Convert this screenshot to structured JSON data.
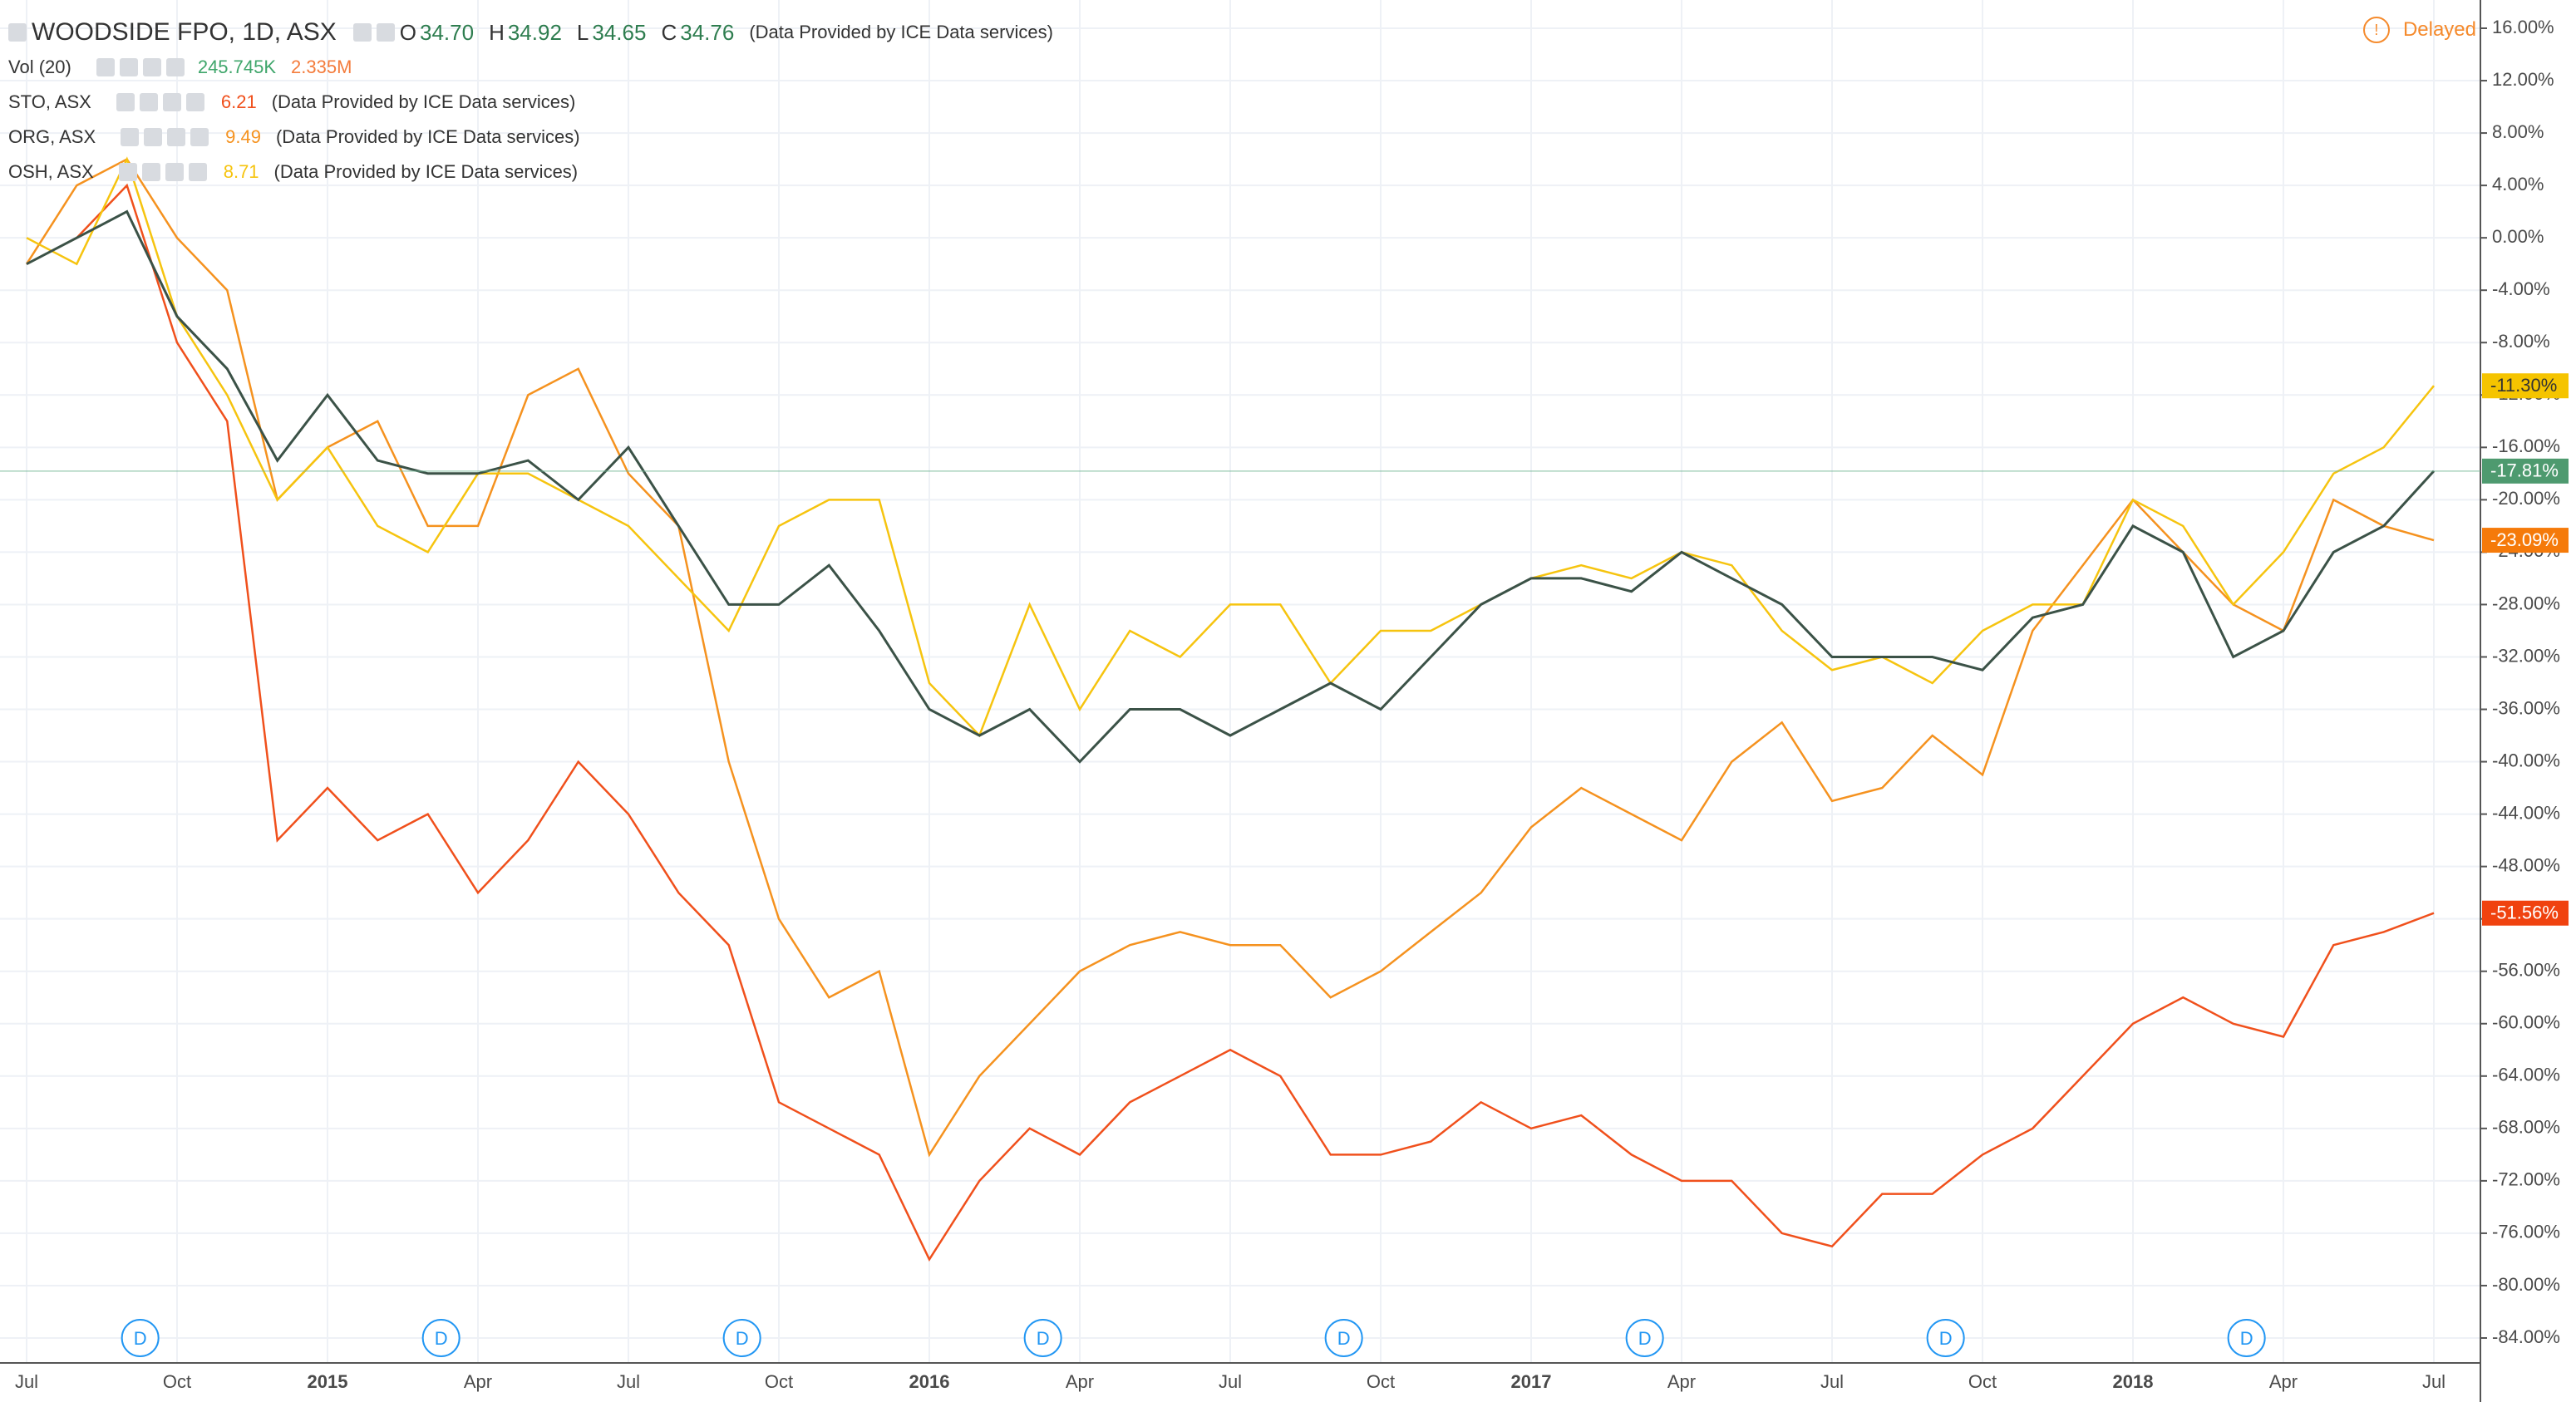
{
  "header": {
    "ohlc": [
      {
        "key": "O",
        "value": "34.70"
      },
      {
        "key": "H",
        "value": "34.92"
      },
      {
        "key": "L",
        "value": "34.65"
      },
      {
        "key": "C",
        "value": "34.76"
      }
    ],
    "source": "(Data Provided by ICE Data services)",
    "delayed": "Delayed",
    "volume": {
      "name": "Vol (20)",
      "values": [
        "245.745K",
        "2.335M"
      ]
    }
  },
  "chart_data": {
    "type": "line",
    "categories": [
      "Jul",
      null,
      null,
      "Oct",
      null,
      null,
      "2015",
      null,
      null,
      "Apr",
      null,
      null,
      "Jul",
      null,
      null,
      "Oct",
      null,
      null,
      "2016",
      null,
      null,
      "Apr",
      null,
      null,
      "Jul",
      null,
      null,
      "Oct",
      null,
      null,
      "2017",
      null,
      null,
      "Apr",
      null,
      null,
      "Jul",
      null,
      null,
      "Oct",
      null,
      null,
      "2018",
      null,
      null,
      "Apr",
      null,
      null,
      "Jul"
    ],
    "ylim": [
      -86,
      18
    ],
    "yticks": [
      {
        "value": 16,
        "label": "16.00%"
      },
      {
        "value": 12,
        "label": "12.00%"
      },
      {
        "value": 8,
        "label": "8.00%"
      },
      {
        "value": 4,
        "label": "4.00%"
      },
      {
        "value": 0,
        "label": "0.00%"
      },
      {
        "value": -4,
        "label": "-4.00%"
      },
      {
        "value": -8,
        "label": "-8.00%"
      },
      {
        "value": -12,
        "label": "-12.00%"
      },
      {
        "value": -16,
        "label": "-16.00%"
      },
      {
        "value": -20,
        "label": "-20.00%"
      },
      {
        "value": -24,
        "label": "-24.00%"
      },
      {
        "value": -28,
        "label": "-28.00%"
      },
      {
        "value": -32,
        "label": "-32.00%"
      },
      {
        "value": -36,
        "label": "-36.00%"
      },
      {
        "value": -40,
        "label": "-40.00%"
      },
      {
        "value": -44,
        "label": "-44.00%"
      },
      {
        "value": -48,
        "label": "-48.00%"
      },
      {
        "value": -52,
        "label": "-52.00%"
      },
      {
        "value": -56,
        "label": "-56.00%"
      },
      {
        "value": -60,
        "label": "-60.00%"
      },
      {
        "value": -64,
        "label": "-64.00%"
      },
      {
        "value": -68,
        "label": "-68.00%"
      },
      {
        "value": -72,
        "label": "-72.00%"
      },
      {
        "value": -76,
        "label": "-76.00%"
      },
      {
        "value": -80,
        "label": "-80.00%"
      },
      {
        "value": -84,
        "label": "-84.00%"
      }
    ],
    "grid": true,
    "dividend_label": "D",
    "series": [
      {
        "name": "WOODSIDE FPO, 1D, ASX",
        "color": "#3b5247",
        "tag_color": "#4e9a6f",
        "values": [
          -2,
          0,
          2,
          -6,
          -10,
          -17,
          -12,
          -17,
          -18,
          -18,
          -17,
          -20,
          -16,
          -22,
          -28,
          -28,
          -25,
          -30,
          -36,
          -38,
          -36,
          -40,
          -36,
          -36,
          -38,
          -36,
          -34,
          -36,
          -32,
          -28,
          -26,
          -26,
          -27,
          -24,
          -26,
          -28,
          -32,
          -32,
          -32,
          -33,
          -29,
          -28,
          -22,
          -24,
          -32,
          -30,
          -24,
          -22,
          -17.81
        ],
        "value_labels": [
          null,
          null,
          null,
          null,
          null,
          null,
          null,
          null,
          null,
          null,
          null,
          null,
          null,
          null,
          null,
          null,
          null,
          null,
          null,
          null,
          null,
          null,
          null,
          null,
          null,
          null,
          null,
          null,
          null,
          null,
          null,
          null,
          null,
          null,
          null,
          null,
          null,
          null,
          null,
          null,
          null,
          null,
          null,
          null,
          null,
          null,
          null,
          null,
          "-17.81%"
        ]
      },
      {
        "name": "STO, ASX",
        "price": "6.21",
        "color": "#f0501c",
        "tag_color": "#f0420f",
        "values": [
          -2,
          0,
          4,
          -8,
          -14,
          -46,
          -42,
          -46,
          -44,
          -50,
          -46,
          -40,
          -44,
          -50,
          -54,
          -66,
          -68,
          -70,
          -78,
          -72,
          -68,
          -70,
          -66,
          -64,
          -62,
          -64,
          -70,
          -70,
          -69,
          -66,
          -68,
          -67,
          -70,
          -72,
          -72,
          -76,
          -77,
          -73,
          -73,
          -70,
          -68,
          -64,
          -60,
          -58,
          -60,
          -61,
          -54,
          -53,
          -51.56
        ],
        "value_labels": [
          null,
          null,
          null,
          null,
          null,
          null,
          null,
          null,
          null,
          null,
          null,
          null,
          null,
          null,
          null,
          null,
          null,
          null,
          null,
          null,
          null,
          null,
          null,
          null,
          null,
          null,
          null,
          null,
          null,
          null,
          null,
          null,
          null,
          null,
          null,
          null,
          null,
          null,
          null,
          null,
          null,
          null,
          null,
          null,
          null,
          null,
          null,
          null,
          "-51.56%"
        ]
      },
      {
        "name": "ORG, ASX",
        "price": "9.49",
        "color": "#f5921f",
        "tag_color": "#f57a0a",
        "values": [
          -2,
          4,
          6,
          0,
          -4,
          -20,
          -16,
          -14,
          -22,
          -22,
          -12,
          -10,
          -18,
          -22,
          -40,
          -52,
          -58,
          -56,
          -70,
          -64,
          -60,
          -56,
          -54,
          -53,
          -54,
          -54,
          -58,
          -56,
          -53,
          -50,
          -45,
          -42,
          -44,
          -46,
          -40,
          -37,
          -43,
          -42,
          -38,
          -41,
          -30,
          -25,
          -20,
          -24,
          -28,
          -30,
          -20,
          -22,
          -23.09
        ],
        "value_labels": [
          null,
          null,
          null,
          null,
          null,
          null,
          null,
          null,
          null,
          null,
          null,
          null,
          null,
          null,
          null,
          null,
          null,
          null,
          null,
          null,
          null,
          null,
          null,
          null,
          null,
          null,
          null,
          null,
          null,
          null,
          null,
          null,
          null,
          null,
          null,
          null,
          null,
          null,
          null,
          null,
          null,
          null,
          null,
          null,
          null,
          null,
          null,
          null,
          "-23.09%"
        ]
      },
      {
        "name": "OSH, ASX",
        "price": "8.71",
        "color": "#f6c40f",
        "tag_color": "#f5c400",
        "values": [
          0,
          -2,
          6,
          -6,
          -12,
          -20,
          -16,
          -22,
          -24,
          -18,
          -18,
          -20,
          -22,
          -26,
          -30,
          -22,
          -20,
          -20,
          -34,
          -38,
          -28,
          -36,
          -30,
          -32,
          -28,
          -28,
          -34,
          -30,
          -30,
          -28,
          -26,
          -25,
          -26,
          -24,
          -25,
          -30,
          -33,
          -32,
          -34,
          -30,
          -28,
          -28,
          -20,
          -22,
          -28,
          -24,
          -18,
          -16,
          -11.3
        ],
        "value_labels": [
          null,
          null,
          null,
          null,
          null,
          null,
          null,
          null,
          null,
          null,
          null,
          null,
          null,
          null,
          null,
          null,
          null,
          null,
          null,
          null,
          null,
          null,
          null,
          null,
          null,
          null,
          null,
          null,
          null,
          null,
          null,
          null,
          null,
          null,
          null,
          null,
          null,
          null,
          null,
          null,
          null,
          null,
          null,
          null,
          null,
          null,
          null,
          null,
          "-11.30%"
        ]
      }
    ]
  }
}
